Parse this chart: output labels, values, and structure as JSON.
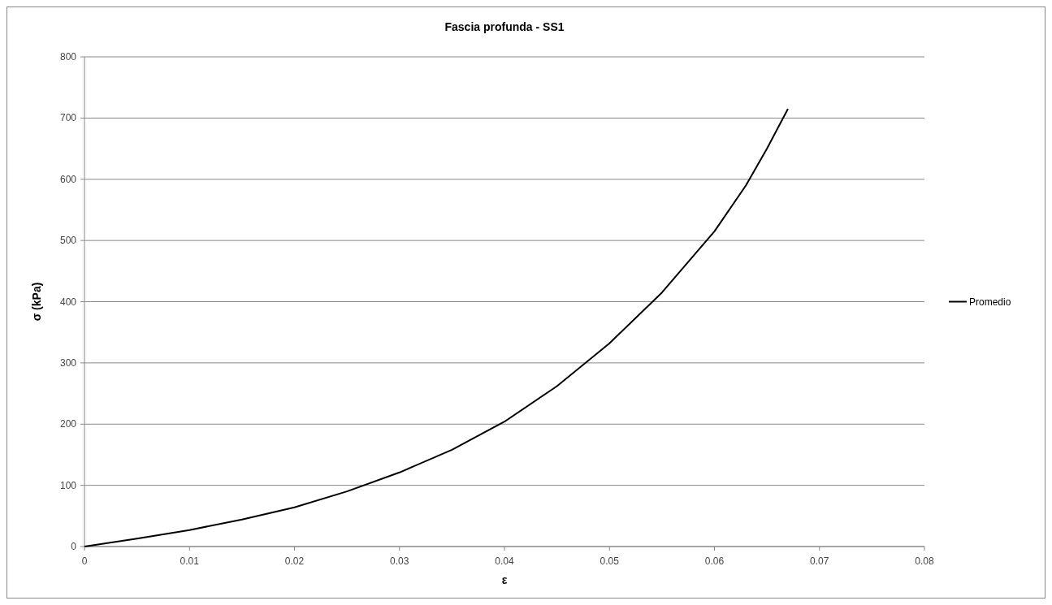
{
  "chart_data": {
    "type": "line",
    "title": "Fascia profunda -  SS1",
    "xlabel": "ε",
    "ylabel": "σ (kPa)",
    "series": [
      {
        "name": "Promedio",
        "color": "#000000",
        "x": [
          0,
          0.005,
          0.01,
          0.015,
          0.02,
          0.025,
          0.03,
          0.035,
          0.04,
          0.045,
          0.05,
          0.055,
          0.06,
          0.063,
          0.065,
          0.067
        ],
        "values": [
          0,
          13,
          27,
          44,
          64,
          90,
          121,
          158,
          204,
          262,
          332,
          415,
          515,
          590,
          650,
          715
        ]
      }
    ],
    "xlim": [
      0,
      0.08
    ],
    "xticks": [
      0,
      0.01,
      0.02,
      0.03,
      0.04,
      0.05,
      0.06,
      0.07,
      0.08
    ],
    "ylim": [
      0,
      800
    ],
    "yticks": [
      0,
      100,
      200,
      300,
      400,
      500,
      600,
      700,
      800
    ],
    "grid": "y",
    "legend": "right",
    "marker": "none",
    "line_style": "solid"
  }
}
